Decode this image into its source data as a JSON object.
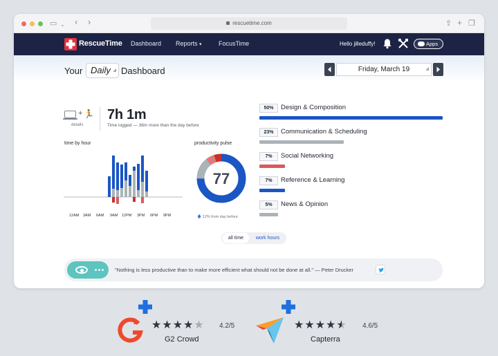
{
  "browser": {
    "url": "rescuetime.com"
  },
  "nav": {
    "brand": "RescueTime",
    "links": [
      "Dashboard",
      "Reports",
      "FocusTime"
    ],
    "greeting": "Hello jilleduffy!",
    "apps_label": "Apps"
  },
  "dashboard": {
    "title_prefix": "Your",
    "period": "Daily",
    "title_suffix": "Dashboard",
    "date": "Friday, March 19",
    "details_label": "details",
    "total_time": "7h 1m",
    "total_sub": "Time logged — 36m more than the day before"
  },
  "time_by_hour": {
    "title": "time by hour",
    "ticks": [
      "12AM",
      "3AM",
      "6AM",
      "9AM",
      "12PM",
      "3PM",
      "6PM",
      "9PM"
    ]
  },
  "productivity_pulse": {
    "title": "productivity pulse",
    "score": "77",
    "change": "12% from day before"
  },
  "categories": [
    {
      "percent": "50%",
      "name": "Design & Composition",
      "value": 50,
      "color": "#1a56c4"
    },
    {
      "percent": "23%",
      "name": "Communication & Scheduling",
      "value": 23,
      "color": "#aab3b8"
    },
    {
      "percent": "7%",
      "name": "Social Networking",
      "value": 7,
      "color": "#d85a5a"
    },
    {
      "percent": "7%",
      "name": "Reference & Learning",
      "value": 7,
      "color": "#1a56c4"
    },
    {
      "percent": "5%",
      "name": "News & Opinion",
      "value": 5,
      "color": "#aab3b8"
    }
  ],
  "toggle": {
    "all_time": "all time",
    "work_hours": "work hours"
  },
  "quote": "\"Nothing is less productive than to make more efficient what should not be done at all.\" — Peter Drucker",
  "reviews": [
    {
      "name": "G2 Crowd",
      "score": "4.2/5",
      "stars": 4
    },
    {
      "name": "Capterra",
      "score": "4.6/5",
      "stars": 4.5
    }
  ],
  "colors": {
    "nav_bg": "#1c2344",
    "productive": "#1a56c4",
    "neutral": "#aab3b8",
    "distracting": "#d85a5a",
    "accent_teal": "#5ec4c0",
    "brand_red": "#e0323c",
    "badge_blue": "#1f6fe0"
  }
}
